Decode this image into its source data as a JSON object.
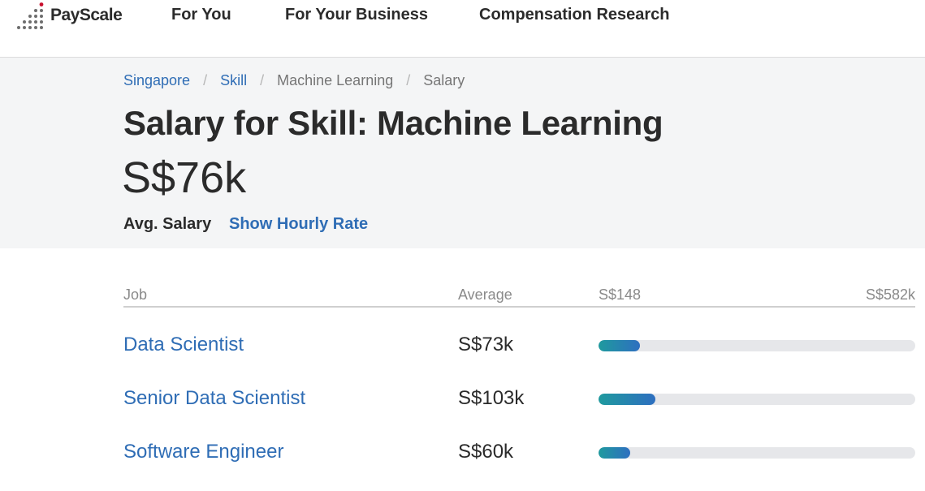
{
  "brand": {
    "name": "PayScale"
  },
  "nav": {
    "items": [
      "For You",
      "For Your Business",
      "Compensation Research"
    ]
  },
  "breadcrumb": {
    "items": [
      "Singapore",
      "Skill",
      "Machine Learning",
      "Salary"
    ],
    "separator": "/"
  },
  "header": {
    "title": "Salary for Skill: Machine Learning",
    "avg_value": "S$76k",
    "avg_label": "Avg. Salary",
    "hourly_link": "Show Hourly Rate"
  },
  "table": {
    "columns": {
      "job": "Job",
      "average": "Average",
      "range_min": "S$148",
      "range_max": "S$582k"
    },
    "rows": [
      {
        "job": "Data Scientist",
        "average": "S$73k",
        "bar_fraction": 0.13
      },
      {
        "job": "Senior Data Scientist",
        "average": "S$103k",
        "bar_fraction": 0.18
      },
      {
        "job": "Software Engineer",
        "average": "S$60k",
        "bar_fraction": 0.1
      }
    ]
  },
  "colors": {
    "link": "#2f6db5",
    "text": "#2b2b2b",
    "hero_bg": "#f4f5f6",
    "bar_start": "#1f9a9e",
    "bar_end": "#2e6fc0",
    "bar_track": "#e6e7ea",
    "logo_accent": "#c8102e"
  },
  "icons": {
    "logo": "payscale-dots-logo-icon"
  }
}
